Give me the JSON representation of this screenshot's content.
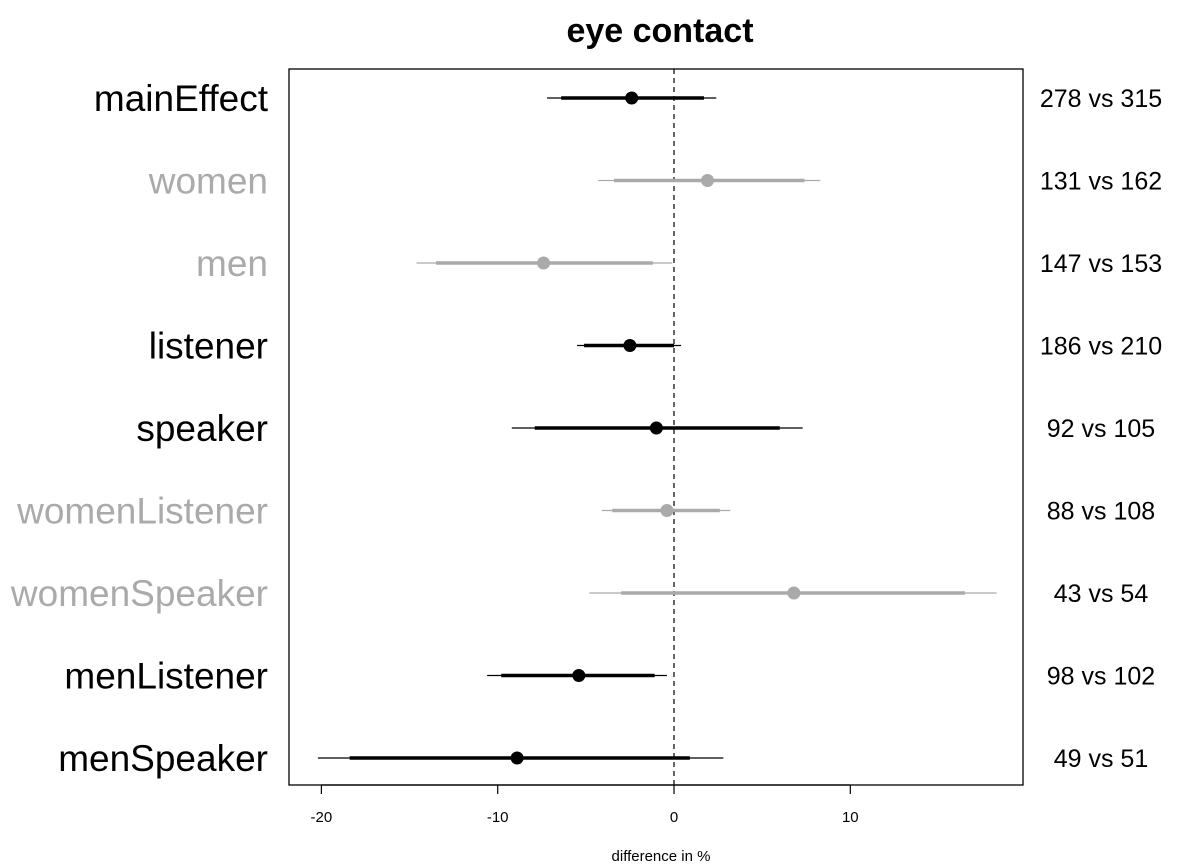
{
  "chart_data": {
    "type": "forest",
    "title": "eye contact",
    "xlabel": "difference in %",
    "xlim": [
      -22,
      20
    ],
    "xticks": [
      -20,
      -10,
      0,
      10
    ],
    "xtick_labels": [
      "-20",
      "-10",
      "0",
      "10"
    ],
    "reference_line": 0,
    "colors": {
      "primary": "#000000",
      "secondary": "#aaaaaa"
    },
    "rows": [
      {
        "label": "mainEffect",
        "n_text": "278 vs 315",
        "estimate": -2.4,
        "ci_inner": [
          -6.4,
          1.7
        ],
        "ci_outer": [
          -7.2,
          2.4
        ],
        "color": "#000000"
      },
      {
        "label": "women",
        "n_text": "131 vs 162",
        "estimate": 1.9,
        "ci_inner": [
          -3.4,
          7.4
        ],
        "ci_outer": [
          -4.3,
          8.3
        ],
        "color": "#aaaaaa"
      },
      {
        "label": "men",
        "n_text": "147 vs 153",
        "estimate": -7.4,
        "ci_inner": [
          -13.5,
          -1.2
        ],
        "ci_outer": [
          -14.6,
          -0.1
        ],
        "color": "#aaaaaa"
      },
      {
        "label": "listener",
        "n_text": "186 vs 210",
        "estimate": -2.5,
        "ci_inner": [
          -5.1,
          0.0
        ],
        "ci_outer": [
          -5.5,
          0.4
        ],
        "color": "#000000"
      },
      {
        "label": "speaker",
        "n_text": "92 vs 105",
        "estimate": -1.0,
        "ci_inner": [
          -7.9,
          6.0
        ],
        "ci_outer": [
          -9.2,
          7.3
        ],
        "color": "#000000"
      },
      {
        "label": "womenListener",
        "n_text": "88 vs 108",
        "estimate": -0.4,
        "ci_inner": [
          -3.5,
          2.6
        ],
        "ci_outer": [
          -4.1,
          3.2
        ],
        "color": "#aaaaaa"
      },
      {
        "label": "womenSpeaker",
        "n_text": "43 vs 54",
        "estimate": 6.8,
        "ci_inner": [
          -3.0,
          16.5
        ],
        "ci_outer": [
          -4.8,
          18.3
        ],
        "color": "#aaaaaa"
      },
      {
        "label": "menListener",
        "n_text": "98 vs 102",
        "estimate": -5.4,
        "ci_inner": [
          -9.8,
          -1.1
        ],
        "ci_outer": [
          -10.6,
          -0.4
        ],
        "color": "#000000"
      },
      {
        "label": "menSpeaker",
        "n_text": "49 vs 51",
        "estimate": -8.9,
        "ci_inner": [
          -18.4,
          0.9
        ],
        "ci_outer": [
          -20.2,
          2.8
        ],
        "color": "#000000"
      }
    ]
  }
}
